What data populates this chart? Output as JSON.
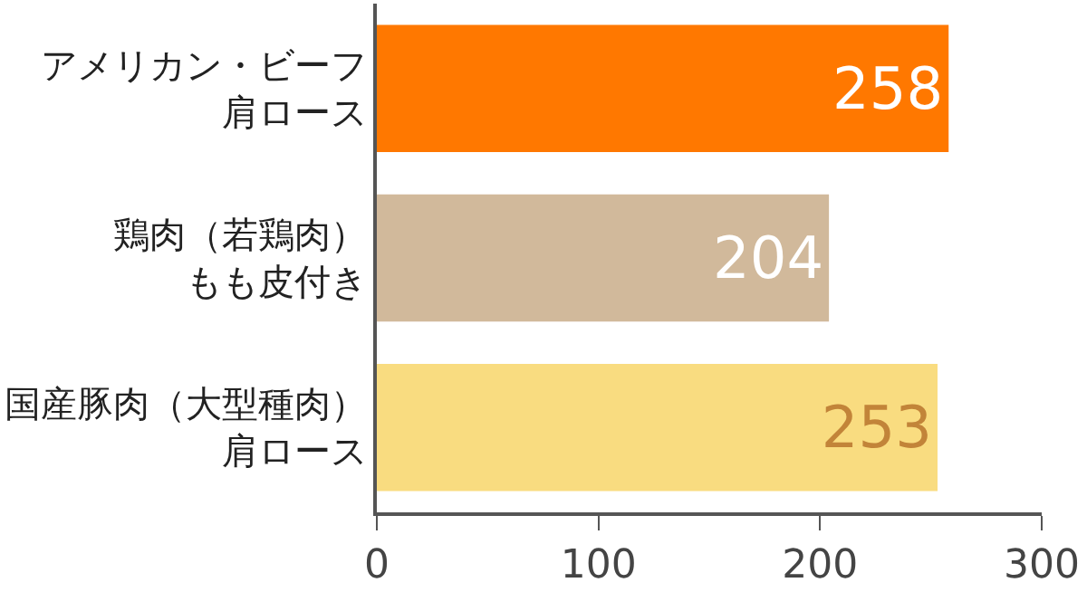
{
  "chart_data": {
    "type": "bar",
    "orientation": "horizontal",
    "categories": [
      "アメリカン・ビーフ肩ロース",
      "鶏肉（若鶏肉）もも皮付き",
      "国産豚肉（大型種肉）肩ロース"
    ],
    "values": [
      258,
      204,
      253
    ],
    "colors": [
      "#ff7800",
      "#d1b99b",
      "#f9dc80"
    ],
    "xlim": [
      0,
      300
    ],
    "xticks": [
      0,
      100,
      200,
      300
    ],
    "data_labels": true,
    "legend": false
  }
}
